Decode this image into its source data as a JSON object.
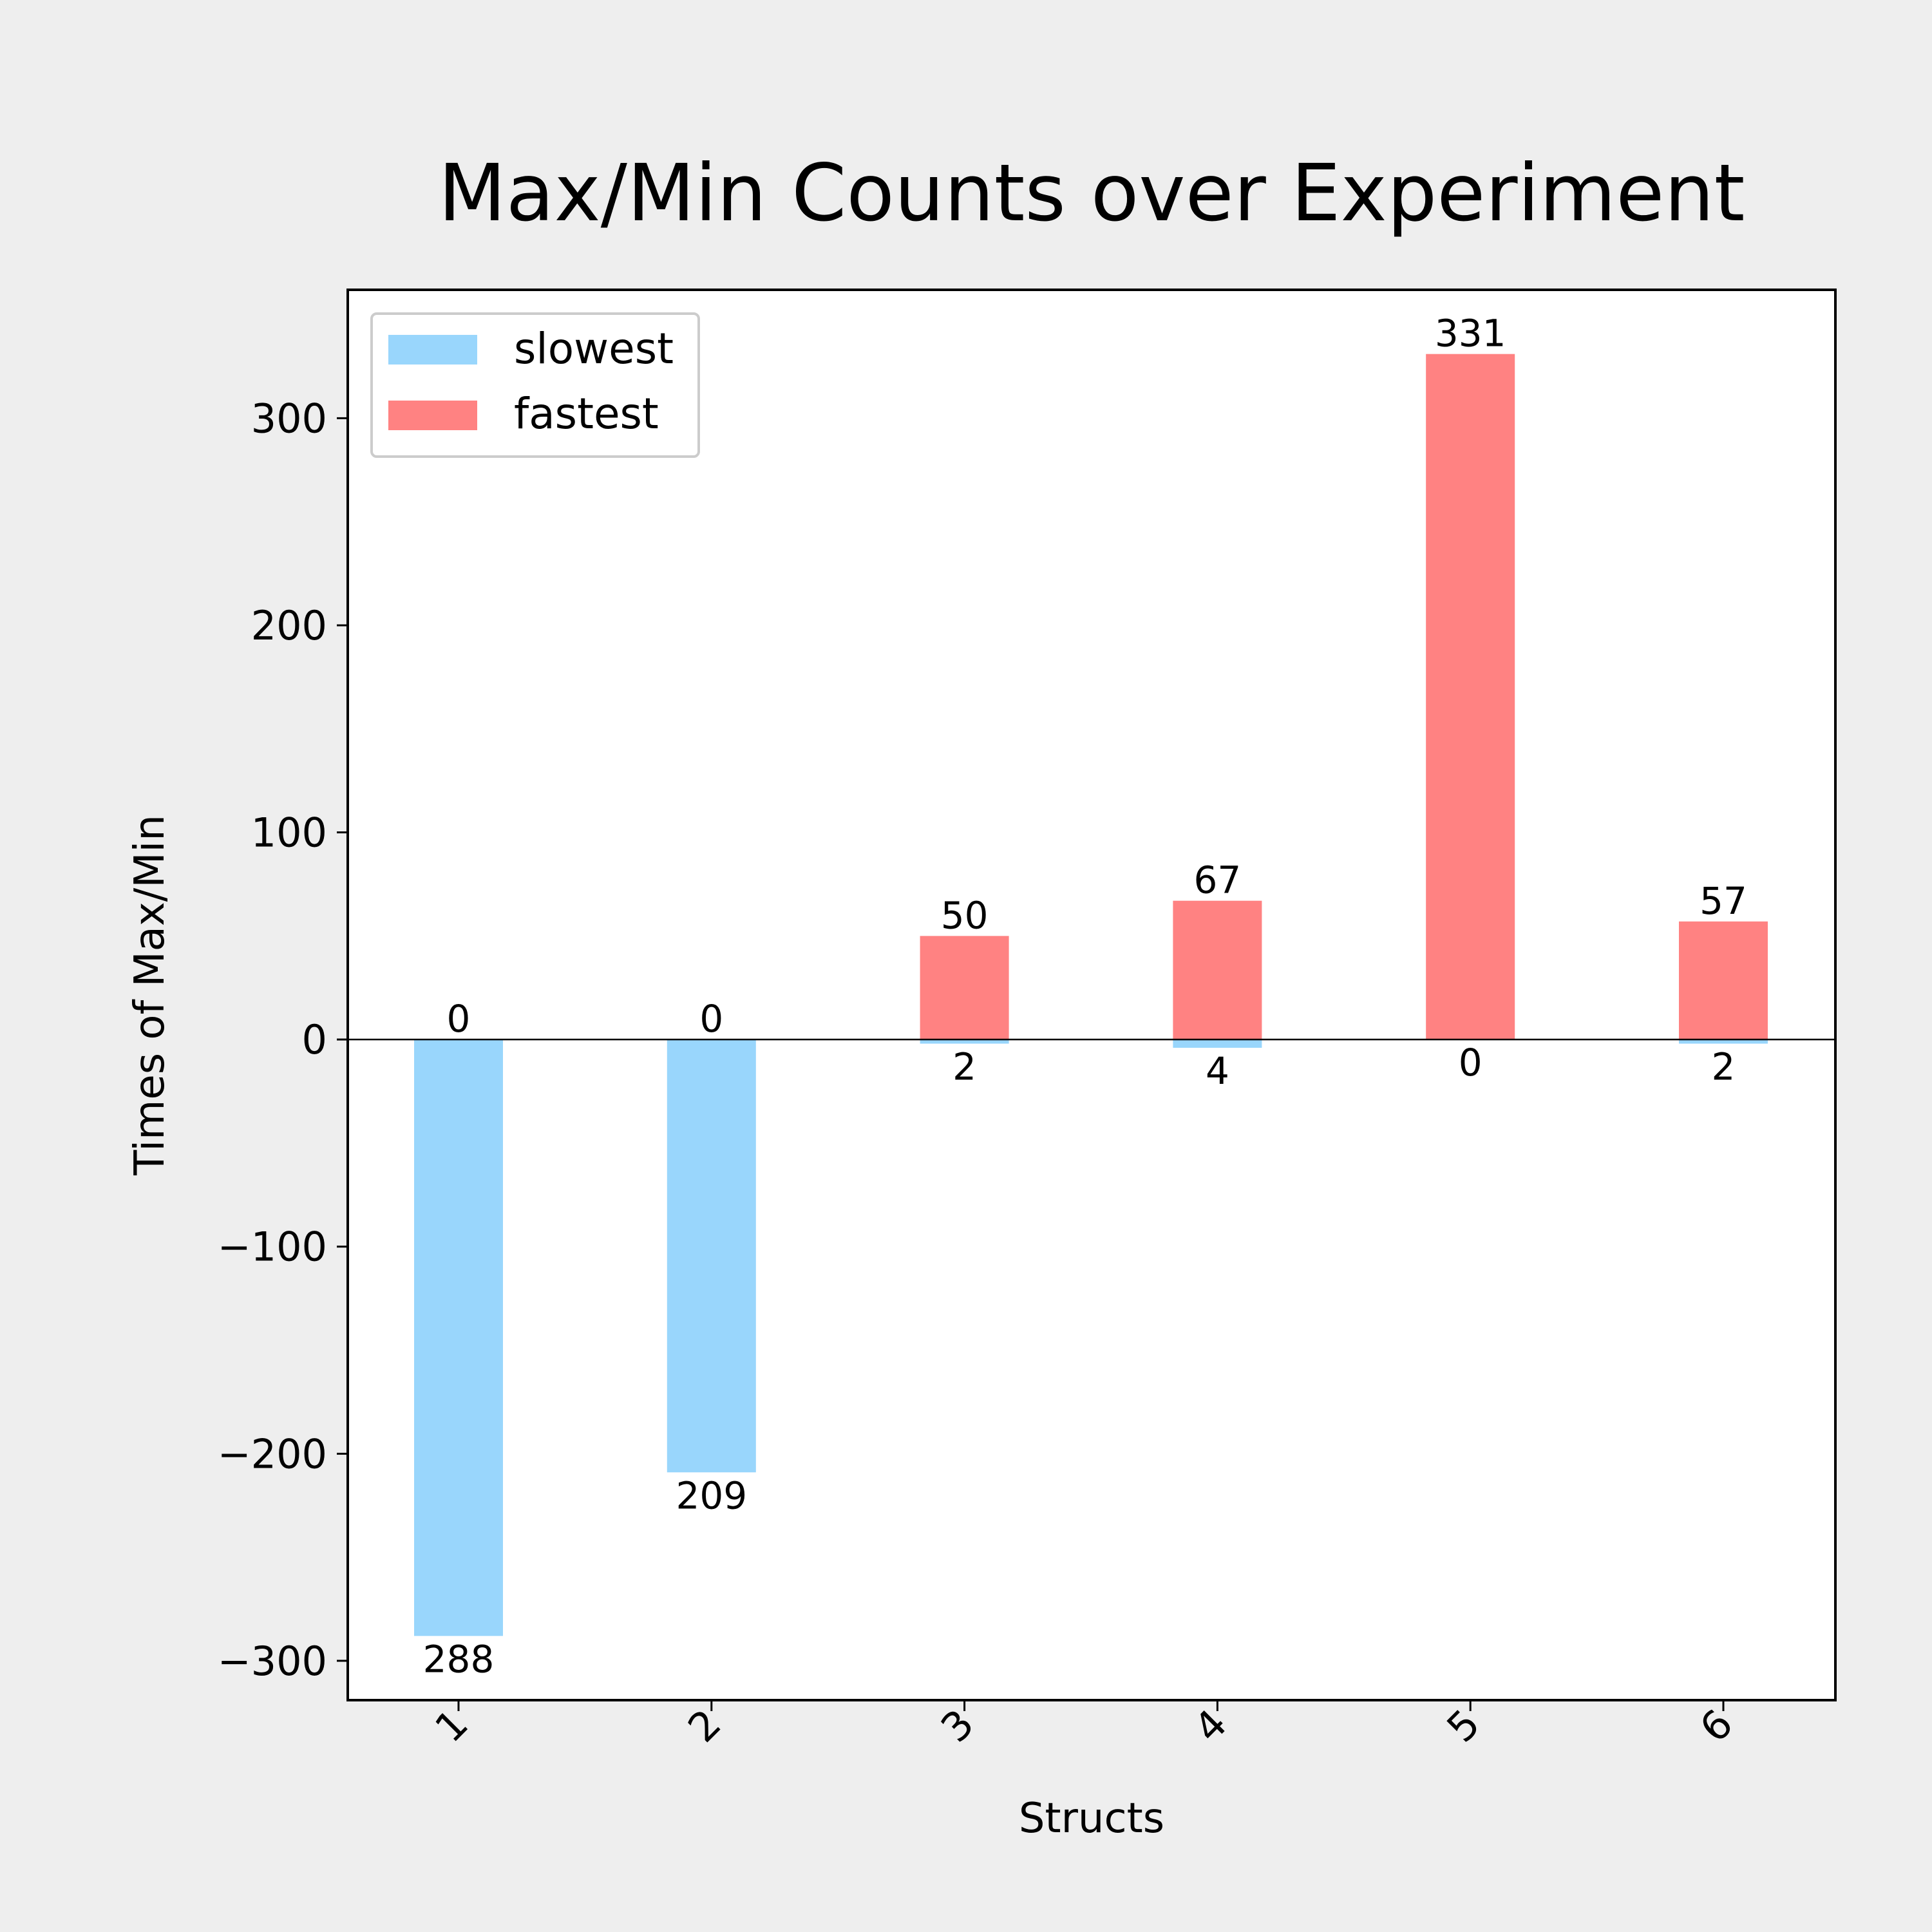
{
  "chart_data": {
    "type": "bar",
    "title": "Max/Min Counts over Experiment",
    "xlabel": "Structs",
    "ylabel": "Times of Max/Min",
    "categories": [
      "1",
      "2",
      "3",
      "4",
      "5",
      "6"
    ],
    "series": [
      {
        "name": "slowest",
        "values": [
          -288,
          -209,
          -2,
          -4,
          0,
          -2
        ],
        "labels": [
          "288",
          "209",
          "2",
          "4",
          "0",
          "2"
        ],
        "color": "#99d6fc"
      },
      {
        "name": "fastest",
        "values": [
          0,
          0,
          50,
          67,
          331,
          57
        ],
        "labels": [
          "0",
          "0",
          "50",
          "67",
          "331",
          "57"
        ],
        "color": "#ff8282"
      }
    ],
    "ylim": [
      -319,
      362
    ],
    "yticks": [
      -300,
      -200,
      -100,
      0,
      100,
      200,
      300
    ],
    "ytick_labels": [
      "−300",
      "−200",
      "−100",
      "0",
      "100",
      "200",
      "300"
    ],
    "xtick_rotation": 45,
    "legend_position": "top-left",
    "grid": false,
    "zero_line": true
  }
}
